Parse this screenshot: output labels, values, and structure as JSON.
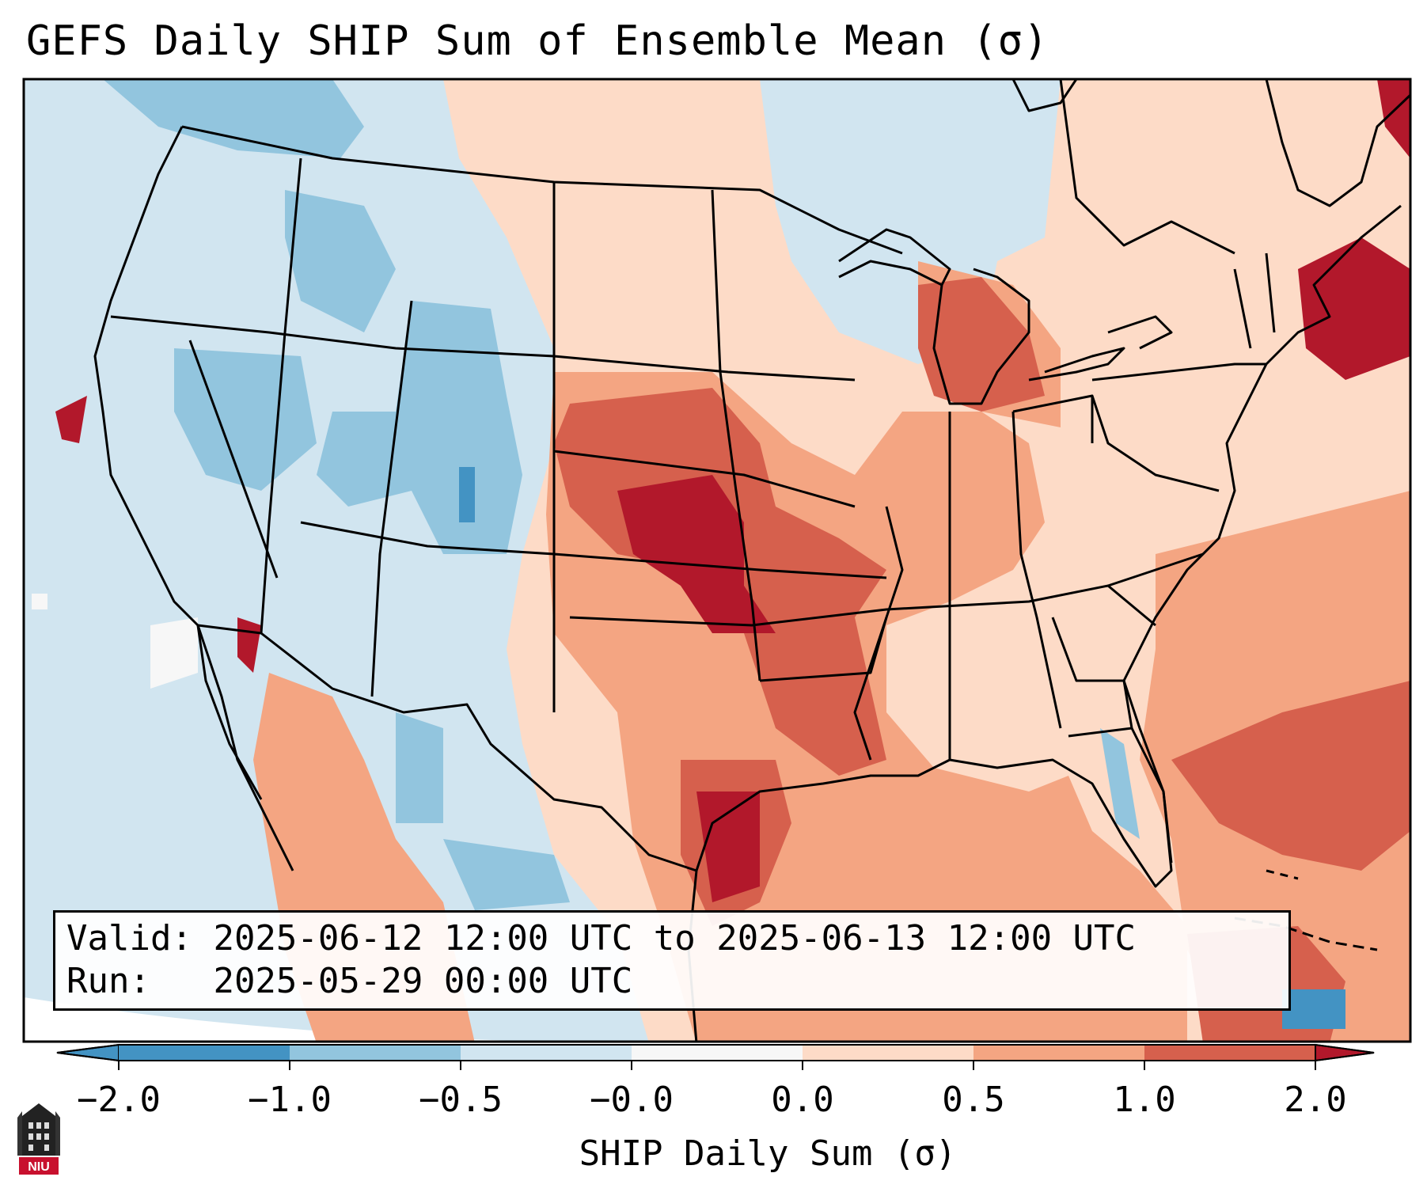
{
  "title": "GEFS Daily SHIP Sum of Ensemble Mean (σ)",
  "info": {
    "valid_label": "Valid:",
    "valid_value": "2025-06-12 12:00 UTC to 2025-06-13 12:00 UTC",
    "run_label": "Run:",
    "run_value": "2025-05-29 00:00 UTC"
  },
  "colorbar": {
    "title": "SHIP Daily Sum (σ)",
    "ticks": [
      "−2.0",
      "−1.0",
      "−0.5",
      "−0.0",
      "0.0",
      "0.5",
      "1.0",
      "2.0"
    ],
    "colors": [
      "#4393c3",
      "#92c5de",
      "#d1e5f0",
      "#f7f7f7",
      "#fddbc7",
      "#f4a582",
      "#d6604d",
      "#b2182b"
    ],
    "extend": "both"
  },
  "logo": {
    "text": "NIU",
    "color": "#c8102e"
  },
  "map": {
    "region": "Contiguous United States, southern Canada, northern Mexico",
    "ocean_color": "#d1e5f0"
  }
}
